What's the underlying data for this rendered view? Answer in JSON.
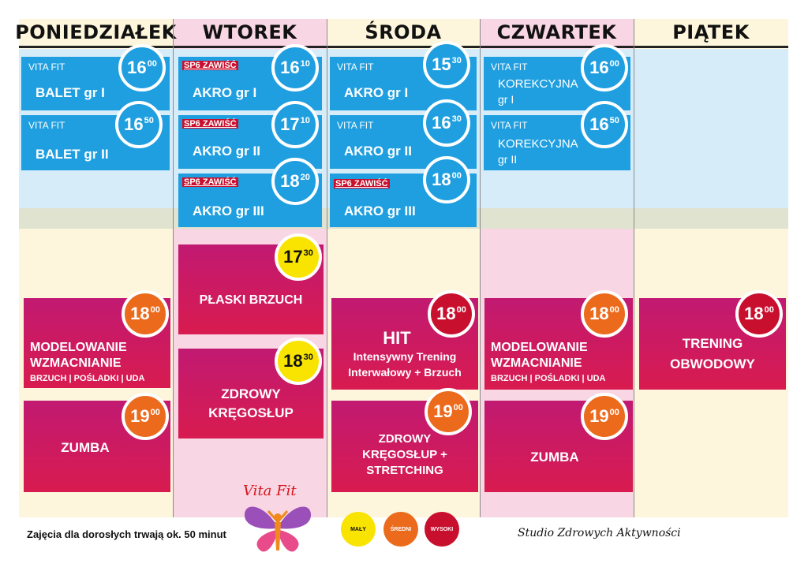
{
  "days": [
    "PONIEDZIAŁEK",
    "WTOREK",
    "ŚRODA",
    "CZWARTEK",
    "PIĄTEK"
  ],
  "tag_text": "SP6 ZAWIŚĆ",
  "small_label": "VITA FIT",
  "mon": {
    "c1": {
      "title": "BALET gr I",
      "h": "16",
      "m": "00"
    },
    "c2": {
      "title": "BALET gr II",
      "h": "16",
      "m": "50"
    },
    "c3": {
      "l1": "MODELOWANIE",
      "l2": "WZMACNIANIE",
      "l3": "BRZUCH | POŚLADKI | UDA",
      "h": "18",
      "m": "00"
    },
    "c4": {
      "title": "ZUMBA",
      "h": "19",
      "m": "00"
    }
  },
  "tue": {
    "c1": {
      "title": "AKRO gr I",
      "h": "16",
      "m": "10"
    },
    "c2": {
      "title": "AKRO gr II",
      "h": "17",
      "m": "10"
    },
    "c3": {
      "title": "AKRO gr III",
      "h": "18",
      "m": "20"
    },
    "c4": {
      "title": "PŁASKI BRZUCH",
      "h": "17",
      "m": "30"
    },
    "c5": {
      "l1": "ZDROWY",
      "l2": "KRĘGOSŁUP",
      "h": "18",
      "m": "30"
    }
  },
  "wed": {
    "c1": {
      "title": "AKRO gr I",
      "h": "15",
      "m": "30"
    },
    "c2": {
      "title": "AKRO gr II",
      "h": "16",
      "m": "30"
    },
    "c3": {
      "title": "AKRO gr III",
      "h": "18",
      "m": "00"
    },
    "c4": {
      "l1": "HIT",
      "l2": "Intensywny Trening",
      "l3": "Interwałowy + Brzuch",
      "h": "18",
      "m": "00"
    },
    "c5": {
      "l1": "ZDROWY",
      "l2": "KRĘGOSŁUP +",
      "l3": "STRETCHING",
      "h": "19",
      "m": "00"
    }
  },
  "thu": {
    "c1": {
      "l1": "KOREKCYJNA",
      "l2": "gr I",
      "h": "16",
      "m": "00"
    },
    "c2": {
      "l1": "KOREKCYJNA",
      "l2": "gr II",
      "h": "16",
      "m": "50"
    },
    "c3": {
      "l1": "MODELOWANIE",
      "l2": "WZMACNIANIE",
      "l3": "BRZUCH | POŚLADKI | UDA",
      "h": "18",
      "m": "00"
    },
    "c4": {
      "title": "ZUMBA",
      "h": "19",
      "m": "00"
    }
  },
  "fri": {
    "c1": {
      "l1": "TRENING",
      "l2": "OBWODOWY",
      "h": "18",
      "m": "00"
    }
  },
  "footer": {
    "duration": "Zajęcia dla dorosłych trwają ok. 50 minut",
    "logo": "Vita Fit",
    "studio": "Studio Zdrowych Aktywności"
  },
  "legend": {
    "low": "MAŁY",
    "mid": "ŚREDNI",
    "high": "WYSOKI"
  },
  "colors": {
    "blue": "#1f9fe0",
    "yellow": "#f9e300",
    "orange": "#ec6a1c",
    "red": "#c8102e",
    "magenta": "#c11a72"
  }
}
